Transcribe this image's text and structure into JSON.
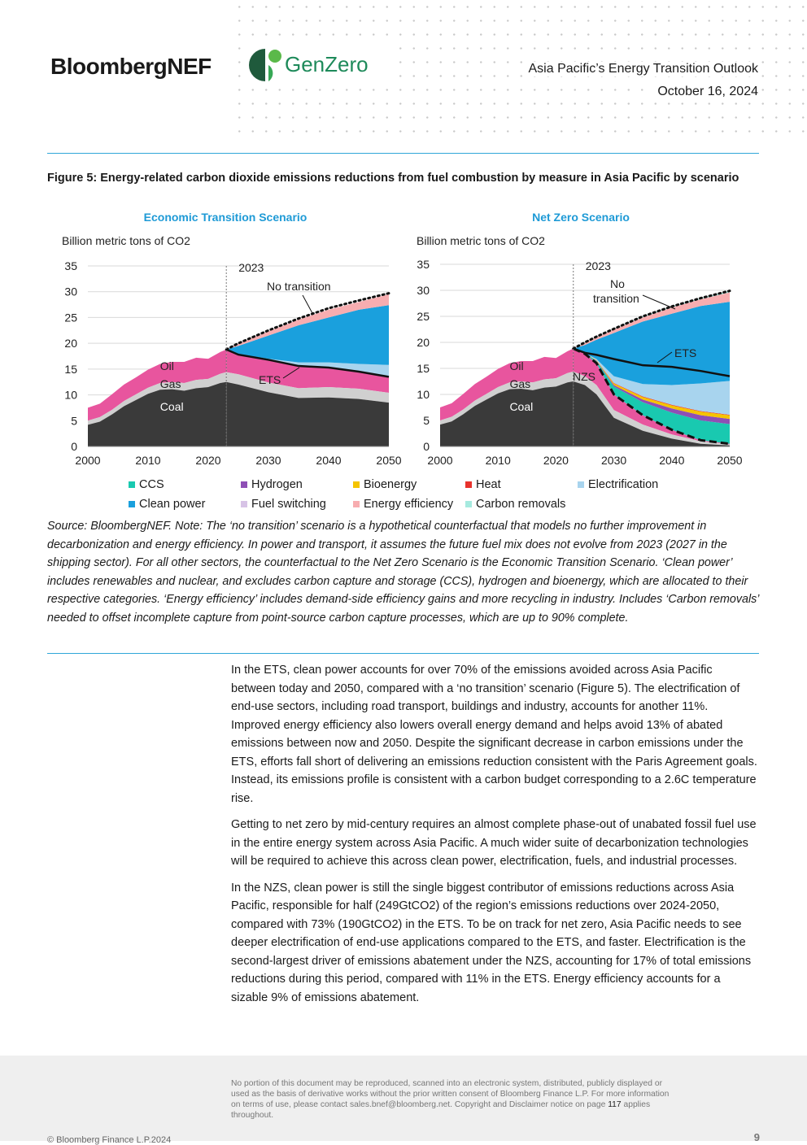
{
  "header": {
    "brand": "BloombergNEF",
    "partner": "GenZero",
    "report_title": "Asia Pacific’s Energy Transition Outlook",
    "date": "October 16, 2024"
  },
  "figure": {
    "title": "Figure 5:  Energy-related carbon dioxide emissions reductions from fuel combustion by measure in Asia Pacific by scenario",
    "source_note": "Source: BloombergNEF. Note: The ‘no transition’ scenario is a hypothetical counterfactual that models no further improvement in decarbonization and energy efficiency. In power and transport, it assumes the future fuel mix does not evolve from 2023 (2027 in the shipping sector). For all other sectors, the counterfactual to the Net Zero Scenario is the Economic Transition Scenario. ‘Clean power’ includes renewables and nuclear, and excludes carbon capture and storage (CCS), hydrogen and bioenergy, which are allocated to their respective categories. ‘Energy efficiency’ includes demand-side efficiency gains and more recycling in industry. Includes ‘Carbon removals’ needed to offset incomplete capture from point-source carbon capture processes, which are up to 90% complete."
  },
  "legend": [
    {
      "label": "CCS",
      "color": "#19c9b0"
    },
    {
      "label": "Hydrogen",
      "color": "#8e4fb5"
    },
    {
      "label": "Bioenergy",
      "color": "#f5c400"
    },
    {
      "label": "Heat",
      "color": "#e8322c"
    },
    {
      "label": "Electrification",
      "color": "#a8d4ee"
    },
    {
      "label": "Clean power",
      "color": "#1aa0dd"
    },
    {
      "label": "Fuel switching",
      "color": "#d7c3e6"
    },
    {
      "label": "Energy efficiency",
      "color": "#f7adb0"
    },
    {
      "label": "Carbon removals",
      "color": "#a6eadf"
    }
  ],
  "chart_data": [
    {
      "type": "area",
      "title": "Economic Transition Scenario",
      "ylabel": "Billion metric tons of CO2",
      "ylim": [
        0,
        35
      ],
      "yticks": [
        0,
        5,
        10,
        15,
        20,
        25,
        30,
        35
      ],
      "xlim": [
        2000,
        2050
      ],
      "xticks": [
        2000,
        2010,
        2020,
        2030,
        2040,
        2050
      ],
      "marker_year": 2023,
      "marker_label": "2023",
      "region_labels": {
        "coal": "Coal",
        "gas": "Gas",
        "oil": "Oil"
      },
      "annotations": {
        "no_transition": "No transition",
        "scenario": "ETS"
      },
      "historical": {
        "x": [
          2000,
          2002,
          2004,
          2006,
          2008,
          2010,
          2012,
          2014,
          2016,
          2018,
          2020,
          2022,
          2023
        ],
        "coal": [
          4.2,
          4.8,
          6.2,
          7.8,
          9.0,
          10.2,
          11.0,
          11.1,
          10.8,
          11.3,
          11.5,
          12.3,
          12.5
        ],
        "gas": [
          5.0,
          5.7,
          7.1,
          8.8,
          10.1,
          11.4,
          12.3,
          12.5,
          12.3,
          12.9,
          13.1,
          14.1,
          14.4
        ],
        "total": [
          7.5,
          8.3,
          10.1,
          12.0,
          13.4,
          14.9,
          16.0,
          16.4,
          16.4,
          17.2,
          17.0,
          18.3,
          18.8
        ]
      },
      "projection": {
        "x": [
          2023,
          2025,
          2030,
          2035,
          2040,
          2045,
          2050
        ],
        "coal": [
          12.5,
          12.0,
          10.5,
          9.4,
          9.5,
          9.2,
          8.5
        ],
        "gas": [
          14.4,
          14.0,
          12.4,
          11.3,
          11.5,
          11.2,
          10.4
        ],
        "ets": [
          18.8,
          17.8,
          16.8,
          15.6,
          15.3,
          14.5,
          13.5
        ],
        "fuel_switching": [
          18.8,
          17.8,
          16.8,
          15.7,
          15.4,
          14.6,
          13.6
        ],
        "electrification": [
          18.8,
          17.9,
          17.0,
          16.3,
          16.3,
          16.0,
          15.8
        ],
        "clean_power": [
          18.8,
          19.5,
          21.5,
          23.5,
          25.0,
          26.5,
          27.4
        ],
        "energy_efficiency": [
          18.8,
          19.9,
          22.3,
          24.6,
          26.5,
          28.0,
          29.5
        ],
        "no_transition": [
          18.8,
          20.0,
          22.5,
          24.8,
          26.8,
          28.3,
          29.7
        ]
      }
    },
    {
      "type": "area",
      "title": "Net Zero Scenario",
      "ylabel": "Billion metric tons of CO2",
      "ylim": [
        0,
        35
      ],
      "yticks": [
        0,
        5,
        10,
        15,
        20,
        25,
        30,
        35
      ],
      "xlim": [
        2000,
        2050
      ],
      "xticks": [
        2000,
        2010,
        2020,
        2030,
        2040,
        2050
      ],
      "marker_year": 2023,
      "marker_label": "2023",
      "region_labels": {
        "coal": "Coal",
        "gas": "Gas",
        "oil": "Oil"
      },
      "annotations": {
        "no_transition": "No\ntransition",
        "scenario": "NZS",
        "ets": "ETS"
      },
      "historical": {
        "x": [
          2000,
          2002,
          2004,
          2006,
          2008,
          2010,
          2012,
          2014,
          2016,
          2018,
          2020,
          2022,
          2023
        ],
        "coal": [
          4.2,
          4.8,
          6.2,
          7.8,
          9.0,
          10.2,
          11.0,
          11.1,
          10.8,
          11.3,
          11.5,
          12.3,
          12.5
        ],
        "gas": [
          5.0,
          5.7,
          7.1,
          8.8,
          10.1,
          11.4,
          12.3,
          12.5,
          12.3,
          12.9,
          13.1,
          14.1,
          14.4
        ],
        "total": [
          7.5,
          8.3,
          10.1,
          12.0,
          13.4,
          14.9,
          16.0,
          16.4,
          16.4,
          17.2,
          17.0,
          18.3,
          18.8
        ]
      },
      "projection": {
        "x": [
          2023,
          2025,
          2027,
          2030,
          2035,
          2040,
          2045,
          2050
        ],
        "coal": [
          12.5,
          11.8,
          10.0,
          5.5,
          3.0,
          1.5,
          0.5,
          0.2
        ],
        "gas": [
          14.4,
          13.5,
          11.8,
          7.0,
          4.2,
          2.3,
          1.0,
          0.4
        ],
        "nzs": [
          18.8,
          17.8,
          16.0,
          10.0,
          6.0,
          3.2,
          1.2,
          0.5
        ],
        "ccs": [
          18.8,
          17.9,
          16.4,
          11.5,
          8.5,
          6.5,
          5.0,
          4.3
        ],
        "hydrogen": [
          18.8,
          17.9,
          16.5,
          11.8,
          9.0,
          7.3,
          6.0,
          5.3
        ],
        "bioenergy": [
          18.8,
          17.9,
          16.6,
          12.1,
          9.5,
          7.9,
          6.7,
          6.0
        ],
        "heat": [
          18.8,
          17.9,
          16.6,
          12.2,
          9.6,
          8.0,
          6.8,
          6.1
        ],
        "electrification": [
          18.8,
          17.9,
          16.8,
          13.5,
          12.0,
          11.8,
          12.1,
          12.6
        ],
        "ets": [
          18.8,
          18.0,
          17.6,
          16.8,
          15.6,
          15.3,
          14.5,
          13.5
        ],
        "clean_power": [
          18.8,
          19.5,
          20.5,
          21.8,
          24.0,
          25.5,
          27.0,
          27.8
        ],
        "energy_efficiency": [
          18.8,
          19.9,
          21.0,
          22.5,
          24.8,
          26.7,
          28.3,
          29.6
        ],
        "carbon_removals": [
          18.8,
          20.0,
          21.1,
          22.6,
          25.0,
          26.9,
          28.5,
          29.9
        ]
      }
    }
  ],
  "body": [
    "In the ETS, clean power accounts for over 70% of the emissions avoided across Asia Pacific between today and 2050, compared with a ‘no transition’ scenario (Figure 5). The electrification of end-use sectors, including road transport, buildings and industry, accounts for another 11%. Improved energy efficiency also lowers overall energy demand and helps avoid 13% of abated emissions between now and 2050. Despite the significant decrease in carbon emissions under the ETS, efforts fall short of delivering an emissions reduction consistent with the Paris Agreement goals. Instead, its emissions profile is consistent with a carbon budget corresponding to a 2.6C temperature rise.",
    "Getting to net zero by mid-century requires an almost complete phase-out of unabated fossil fuel use in the entire energy system across Asia Pacific. A much wider suite of decarbonization technologies will be required to achieve this across clean power, electrification, fuels, and industrial processes.",
    "In the NZS, clean power is still the single biggest contributor of emissions reductions across Asia Pacific, responsible for half (249GtCO2) of the region’s emissions reductions over 2024-2050, compared with 73% (190GtCO2) in the ETS. To be on track for net zero, Asia Pacific needs to see deeper electrification of end-use applications compared to the ETS, and faster. Electrification is the second-largest driver of emissions abatement under the NZS, accounting for 17% of total emissions reductions during this period, compared with 11% in the ETS. Energy efficiency accounts for a sizable 9% of emissions abatement."
  ],
  "footer": {
    "copyright": "© Bloomberg Finance L.P.2024",
    "disclaimer_1": "No portion of this document may be reproduced, scanned into an electronic system, distributed, publicly displayed or used as the basis of derivative works without the prior written consent of Bloomberg Finance L.P.  For more information on terms of use, please contact sales.bnef@bloomberg.net. Copyright and Disclaimer notice on page ",
    "disclaimer_page": "117",
    "disclaimer_2": " applies throughout.",
    "page_number": "9"
  },
  "colors": {
    "coal": "#3a3a3a",
    "gas": "#d0d0d0",
    "oil": "#e8559e",
    "accent_rule": "#30a7d9",
    "scenario_title": "#1e9ad6"
  }
}
